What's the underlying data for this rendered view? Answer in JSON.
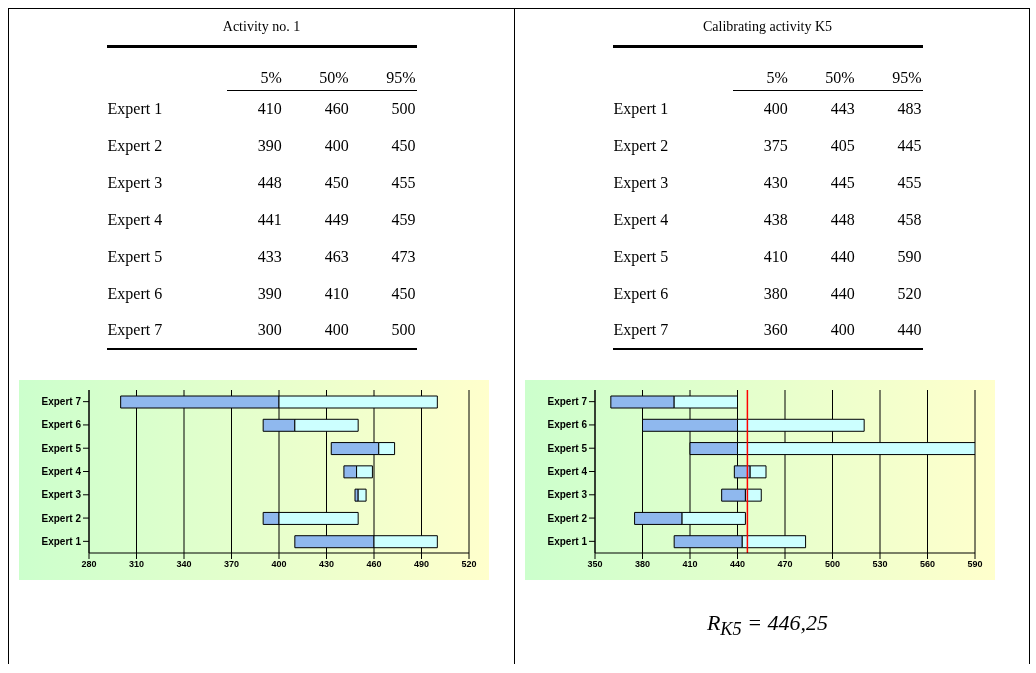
{
  "chart_data": [
    {
      "type": "bar",
      "orientation": "horizontal",
      "title": "Activity no. 1",
      "categories": [
        "Expert 7",
        "Expert 6",
        "Expert 5",
        "Expert 4",
        "Expert 3",
        "Expert 2",
        "Expert 1"
      ],
      "series": [
        {
          "color": "#8fb8ee",
          "base": [
            300,
            390,
            433,
            441,
            448,
            390,
            410
          ],
          "values": [
            100,
            20,
            30,
            8,
            2,
            10,
            50
          ]
        },
        {
          "color": "#ccffff",
          "base": [
            400,
            410,
            463,
            449,
            450,
            400,
            460
          ],
          "values": [
            100,
            40,
            10,
            10,
            5,
            50,
            40
          ]
        }
      ],
      "xlim": [
        280,
        520
      ],
      "xticks": [
        280,
        310,
        340,
        370,
        400,
        430,
        460,
        490,
        520
      ],
      "grid": "x",
      "annotations": [
        "5%",
        "50%",
        "95%",
        "410",
        "460",
        "500",
        "390",
        "400",
        "450",
        "448",
        "450",
        "455",
        "441",
        "449",
        "459",
        "433",
        "463",
        "473",
        "390",
        "410",
        "450",
        "300",
        "400",
        "500"
      ]
    },
    {
      "type": "bar",
      "orientation": "horizontal",
      "title": "Calibrating activity K5",
      "categories": [
        "Expert 7",
        "Expert 6",
        "Expert 5",
        "Expert 4",
        "Expert 3",
        "Expert 2",
        "Expert 1"
      ],
      "series": [
        {
          "color": "#8fb8ee",
          "base": [
            360,
            380,
            410,
            438,
            430,
            375,
            400
          ],
          "values": [
            40,
            60,
            30,
            10,
            15,
            30,
            43
          ]
        },
        {
          "color": "#ccffff",
          "base": [
            400,
            440,
            440,
            448,
            445,
            405,
            443
          ],
          "values": [
            40,
            80,
            150,
            10,
            10,
            40,
            40
          ]
        }
      ],
      "xlim": [
        350,
        590
      ],
      "xticks": [
        350,
        380,
        410,
        440,
        470,
        500,
        530,
        560,
        590
      ],
      "grid": "x",
      "ref_lines": [
        {
          "axis": "x",
          "value": 446.25,
          "color": "#ff0000"
        }
      ],
      "annotations": [
        "5%",
        "50%",
        "95%",
        "400",
        "443",
        "483",
        "375",
        "405",
        "445",
        "430",
        "445",
        "455",
        "438",
        "448",
        "458",
        "410",
        "440",
        "590",
        "380",
        "440",
        "520",
        "360",
        "400",
        "440",
        "R$_{K5}$ = 446,25"
      ]
    }
  ]
}
